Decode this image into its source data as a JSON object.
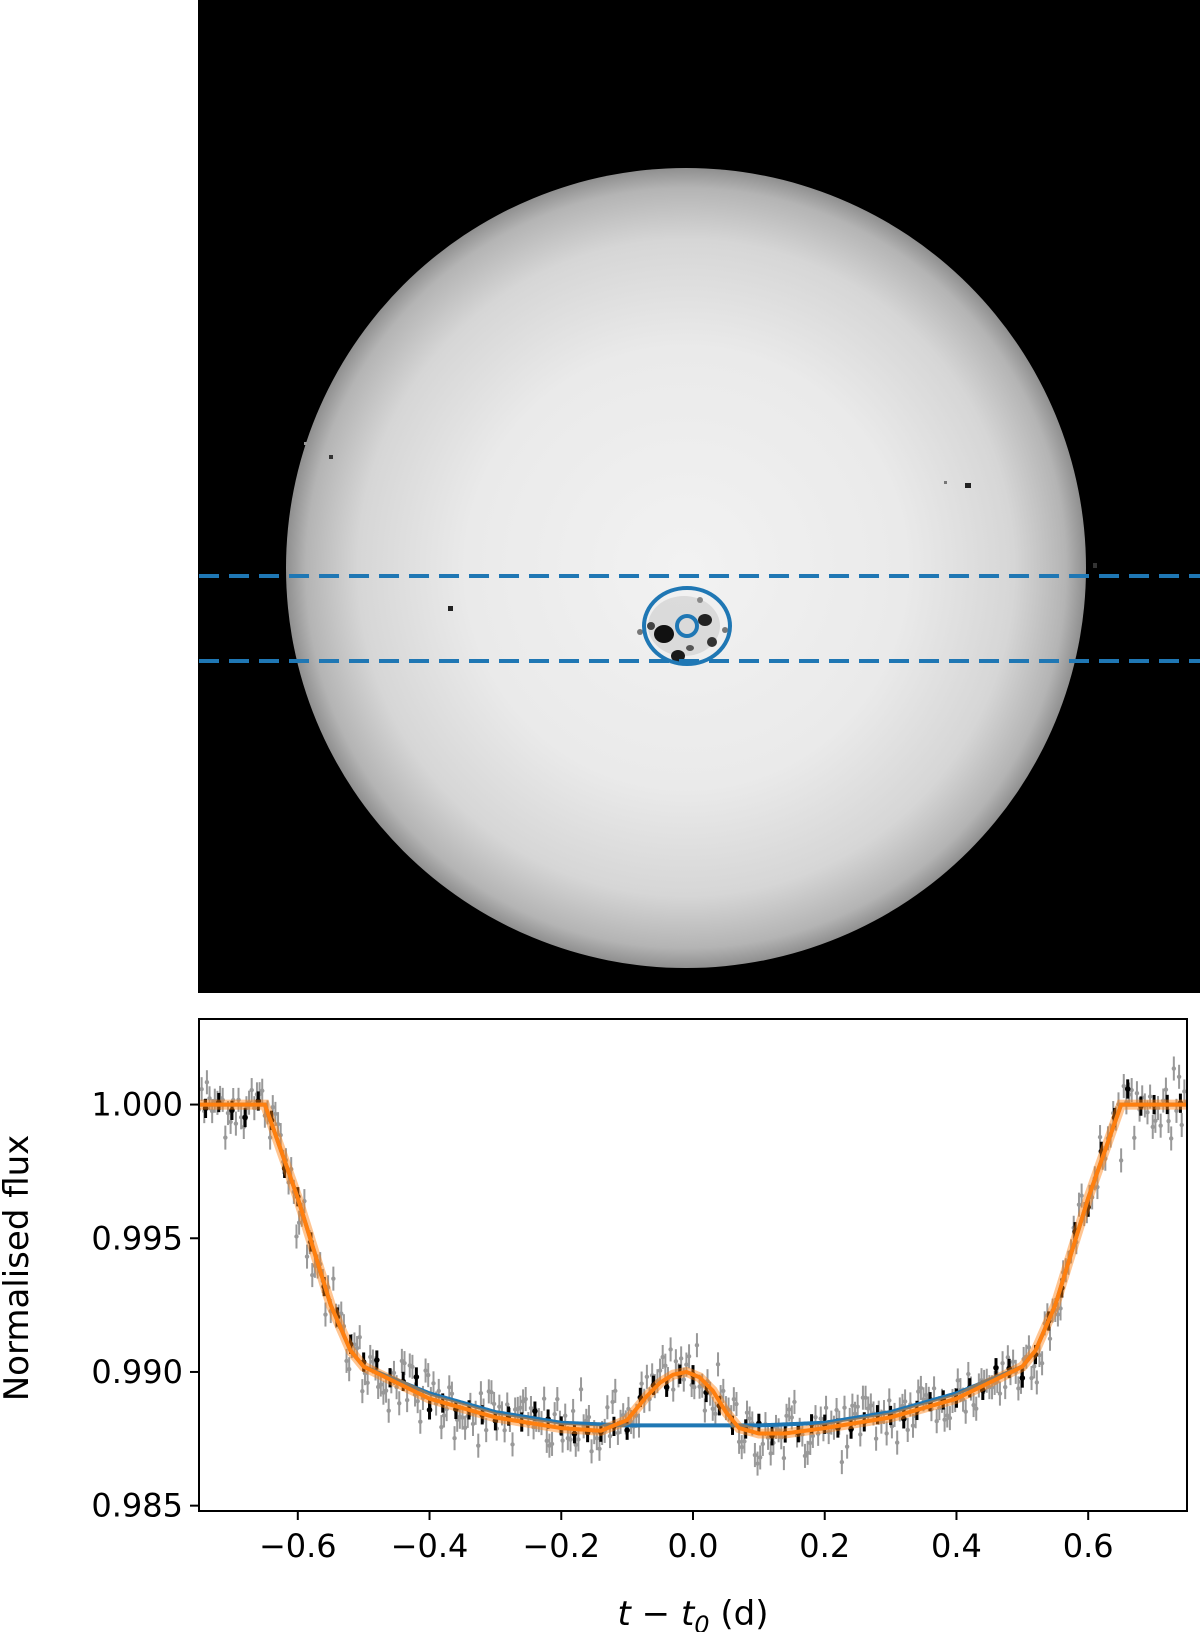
{
  "chart_data": [
    {
      "type": "image",
      "panel": "top",
      "description_labels": [],
      "overlays": {
        "dashed_band": {
          "color": "#1f77b4",
          "style": "dashed"
        },
        "spot_outer_circle": {
          "color": "#1f77b4"
        },
        "spot_inner_circle": {
          "color": "#1f77b4"
        }
      }
    },
    {
      "type": "line",
      "panel": "bottom",
      "xlabel": "t − t",
      "xlabel_subscript": "0",
      "xlabel_unit": " (d)",
      "ylabel": "Normalised flux",
      "xlim": [
        -0.75,
        0.75
      ],
      "ylim": [
        0.9848,
        1.0032
      ],
      "xticks": [
        -0.6,
        -0.4,
        -0.2,
        0.0,
        0.2,
        0.4,
        0.6
      ],
      "xtick_labels": [
        "−0.6",
        "−0.4",
        "−0.2",
        "0.0",
        "0.2",
        "0.4",
        "0.6"
      ],
      "yticks": [
        0.985,
        0.99,
        0.995,
        1.0
      ],
      "ytick_labels": [
        "0.985",
        "0.990",
        "0.995",
        "1.000"
      ],
      "grid": false,
      "series": [
        {
          "role": "unspotted-model",
          "color": "#1f77b4",
          "x": [
            -0.75,
            -0.65,
            -0.6,
            -0.55,
            -0.52,
            -0.5,
            -0.4,
            -0.3,
            -0.2,
            -0.1,
            0.0,
            0.1,
            0.2,
            0.3,
            0.4,
            0.5,
            0.52,
            0.55,
            0.6,
            0.65,
            0.75
          ],
          "y": [
            1.0,
            1.0,
            0.9965,
            0.9925,
            0.9908,
            0.9902,
            0.9892,
            0.9885,
            0.9881,
            0.988,
            0.988,
            0.988,
            0.9881,
            0.9885,
            0.9892,
            0.9902,
            0.9908,
            0.9925,
            0.9965,
            1.0,
            1.0
          ]
        },
        {
          "role": "spotted-model",
          "color": "#ff7f0e",
          "x": [
            -0.75,
            -0.65,
            -0.6,
            -0.55,
            -0.52,
            -0.5,
            -0.4,
            -0.3,
            -0.2,
            -0.14,
            -0.1,
            -0.07,
            -0.05,
            -0.03,
            -0.01,
            0.01,
            0.03,
            0.05,
            0.07,
            0.1,
            0.14,
            0.2,
            0.3,
            0.4,
            0.5,
            0.52,
            0.55,
            0.6,
            0.65,
            0.75
          ],
          "y": [
            1.0,
            1.0,
            0.9965,
            0.9925,
            0.9908,
            0.9902,
            0.989,
            0.9883,
            0.9879,
            0.9878,
            0.9882,
            0.9891,
            0.9896,
            0.9899,
            0.99,
            0.9898,
            0.9893,
            0.9885,
            0.9879,
            0.9877,
            0.9877,
            0.9879,
            0.9883,
            0.989,
            0.9902,
            0.9908,
            0.9925,
            0.9965,
            1.0,
            1.0
          ]
        }
      ],
      "observations": {
        "color_errorbars": "#999999",
        "color_binned": "#000000",
        "noise_sigma": 0.0006,
        "error_bar": 0.00045
      }
    }
  ]
}
